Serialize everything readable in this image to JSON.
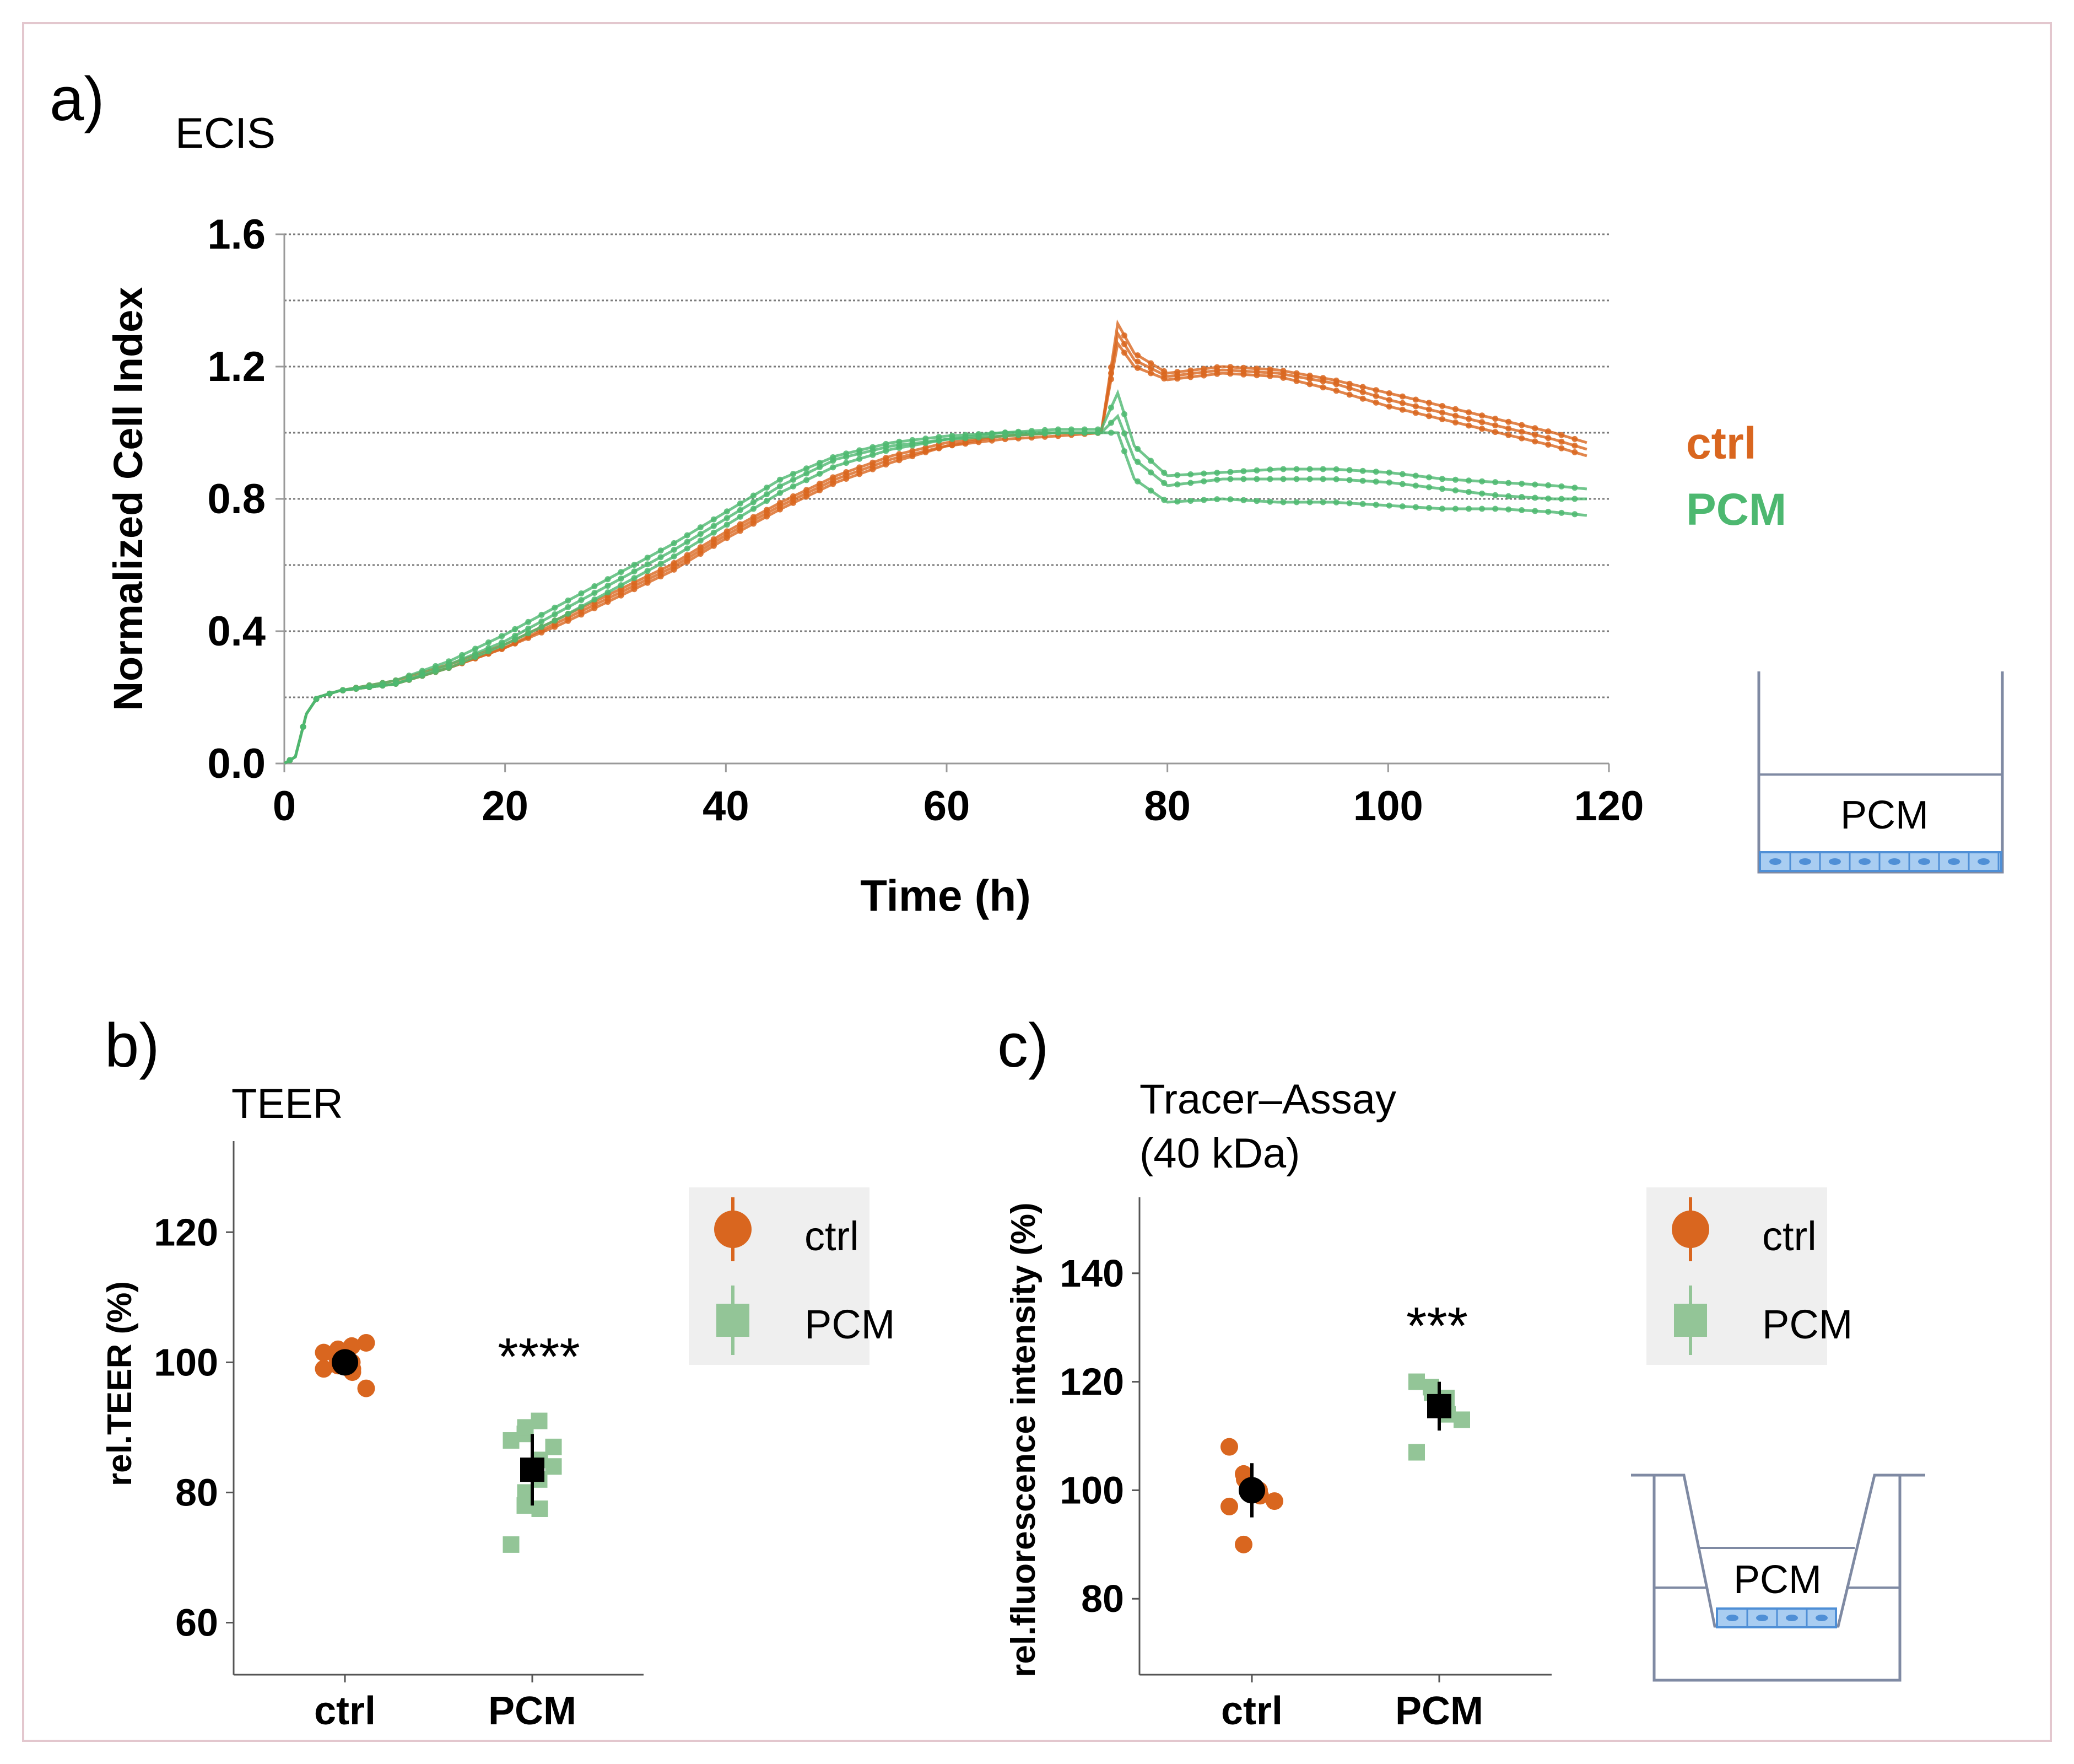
{
  "colors": {
    "ctrl": "#D9661F",
    "pcm": "#4DB870",
    "pcm_light": "#93C597",
    "frame": "#E3C7CE",
    "cell": "#4F8FD6",
    "cell_fill": "#A9CDF1"
  },
  "panels": {
    "a": {
      "letter": "a)",
      "title": "ECIS"
    },
    "b": {
      "letter": "b)",
      "title": "TEER"
    },
    "c": {
      "letter": "c)",
      "title_line1": "Tracer–Assay",
      "title_line2": "(40 kDa)"
    }
  },
  "schematics": {
    "well_label": "PCM",
    "transwell_label": "PCM"
  },
  "chart_data": [
    {
      "id": "ecis",
      "type": "line",
      "title": "ECIS",
      "xlabel": "Time (h)",
      "ylabel": "Normalized Cell Index",
      "xlim": [
        0,
        120
      ],
      "ylim": [
        0,
        1.6
      ],
      "xticks": [
        "0",
        "20",
        "40",
        "60",
        "80",
        "100",
        "120"
      ],
      "yticks": [
        "0.0",
        "0.4",
        "0.8",
        "1.2",
        "1.6"
      ],
      "grid": true,
      "legend": [
        "ctrl",
        "PCM"
      ],
      "series": [
        {
          "name": "ctrl",
          "group": "ctrl",
          "x": [
            0,
            1,
            2,
            3,
            5,
            10,
            15,
            20,
            25,
            30,
            35,
            40,
            45,
            50,
            55,
            60,
            65,
            70,
            74,
            75.5,
            77,
            80,
            85,
            90,
            95,
            100,
            105,
            110,
            115,
            118
          ],
          "y": [
            0,
            0.02,
            0.15,
            0.2,
            0.22,
            0.25,
            0.3,
            0.36,
            0.44,
            0.52,
            0.6,
            0.7,
            0.79,
            0.87,
            0.93,
            0.97,
            0.99,
            1.0,
            1.0,
            1.33,
            1.24,
            1.18,
            1.2,
            1.19,
            1.16,
            1.12,
            1.08,
            1.04,
            1.0,
            0.97
          ]
        },
        {
          "name": "ctrl",
          "group": "ctrl",
          "x": [
            0,
            1,
            2,
            3,
            5,
            10,
            15,
            20,
            25,
            30,
            35,
            40,
            45,
            50,
            55,
            60,
            65,
            70,
            74,
            75.5,
            77,
            80,
            85,
            90,
            95,
            100,
            105,
            110,
            115,
            118
          ],
          "y": [
            0,
            0.02,
            0.15,
            0.2,
            0.22,
            0.24,
            0.29,
            0.35,
            0.43,
            0.51,
            0.59,
            0.69,
            0.78,
            0.86,
            0.92,
            0.96,
            0.99,
            1.0,
            1.0,
            1.3,
            1.22,
            1.17,
            1.19,
            1.18,
            1.15,
            1.1,
            1.06,
            1.02,
            0.98,
            0.95
          ]
        },
        {
          "name": "ctrl",
          "group": "ctrl",
          "x": [
            0,
            1,
            2,
            3,
            5,
            10,
            15,
            20,
            25,
            30,
            35,
            40,
            45,
            50,
            55,
            60,
            65,
            70,
            74,
            75.5,
            77,
            80,
            85,
            90,
            95,
            100,
            105,
            110,
            115,
            118
          ],
          "y": [
            0,
            0.02,
            0.15,
            0.2,
            0.22,
            0.24,
            0.29,
            0.35,
            0.42,
            0.5,
            0.58,
            0.68,
            0.77,
            0.85,
            0.91,
            0.96,
            0.98,
            0.99,
            1.0,
            1.27,
            1.2,
            1.16,
            1.18,
            1.17,
            1.13,
            1.08,
            1.04,
            1.0,
            0.96,
            0.93
          ]
        },
        {
          "name": "PCM",
          "group": "pcm",
          "x": [
            0,
            1,
            2,
            3,
            5,
            10,
            15,
            20,
            25,
            30,
            35,
            40,
            45,
            50,
            55,
            60,
            65,
            70,
            74,
            75.5,
            77,
            80,
            85,
            90,
            95,
            100,
            105,
            110,
            115,
            118
          ],
          "y": [
            0,
            0.02,
            0.15,
            0.2,
            0.22,
            0.25,
            0.31,
            0.39,
            0.48,
            0.57,
            0.66,
            0.76,
            0.86,
            0.93,
            0.97,
            0.99,
            1.0,
            1.01,
            1.01,
            1.12,
            0.96,
            0.87,
            0.88,
            0.89,
            0.89,
            0.88,
            0.86,
            0.85,
            0.84,
            0.83
          ]
        },
        {
          "name": "PCM",
          "group": "pcm",
          "x": [
            0,
            1,
            2,
            3,
            5,
            10,
            15,
            20,
            25,
            30,
            35,
            40,
            45,
            50,
            55,
            60,
            65,
            70,
            74,
            75.5,
            77,
            80,
            85,
            90,
            95,
            100,
            105,
            110,
            115,
            118
          ],
          "y": [
            0,
            0.02,
            0.15,
            0.2,
            0.22,
            0.24,
            0.3,
            0.37,
            0.46,
            0.55,
            0.64,
            0.74,
            0.84,
            0.92,
            0.96,
            0.98,
            1.0,
            1.0,
            1.0,
            1.05,
            0.92,
            0.84,
            0.86,
            0.86,
            0.86,
            0.85,
            0.83,
            0.81,
            0.8,
            0.8
          ]
        },
        {
          "name": "PCM",
          "group": "pcm",
          "x": [
            0,
            1,
            2,
            3,
            5,
            10,
            15,
            20,
            25,
            30,
            35,
            40,
            45,
            50,
            55,
            60,
            65,
            70,
            74,
            75.5,
            77,
            80,
            85,
            90,
            95,
            100,
            105,
            110,
            115,
            118
          ],
          "y": [
            0,
            0.02,
            0.15,
            0.2,
            0.22,
            0.24,
            0.29,
            0.36,
            0.44,
            0.53,
            0.62,
            0.72,
            0.82,
            0.9,
            0.95,
            0.98,
            0.99,
            1.0,
            1.0,
            1.0,
            0.86,
            0.79,
            0.8,
            0.79,
            0.79,
            0.78,
            0.77,
            0.77,
            0.76,
            0.75
          ]
        }
      ]
    },
    {
      "id": "teer",
      "type": "scatter",
      "title": "TEER",
      "xlabel": "",
      "ylabel": "rel.TEER (%)",
      "categories": [
        "ctrl",
        "PCM"
      ],
      "ylim": [
        52,
        134
      ],
      "yticks": [
        "60",
        "80",
        "100",
        "120"
      ],
      "legend": [
        "ctrl",
        "PCM"
      ],
      "significance": "****",
      "points": [
        {
          "group": "ctrl",
          "values": [
            99,
            101,
            102,
            100,
            98.5,
            103,
            101.5,
            100.5,
            99.5,
            102.5,
            99,
            96
          ]
        },
        {
          "group": "PCM",
          "values": [
            72,
            78,
            80,
            82,
            85,
            87,
            88,
            89,
            90,
            91,
            77.5,
            84
          ]
        }
      ],
      "summary": [
        {
          "group": "ctrl",
          "mean": 100,
          "low": 99,
          "high": 101
        },
        {
          "group": "PCM",
          "mean": 83.5,
          "low": 78,
          "high": 89
        }
      ]
    },
    {
      "id": "tracer",
      "type": "scatter",
      "title": "Tracer–Assay (40 kDa)",
      "xlabel": "",
      "ylabel": "rel.fluorescence intensity (%)",
      "categories": [
        "ctrl",
        "PCM"
      ],
      "ylim": [
        66,
        154
      ],
      "yticks": [
        "80",
        "100",
        "120",
        "140"
      ],
      "legend": [
        "ctrl",
        "PCM"
      ],
      "significance": "***",
      "points": [
        {
          "group": "ctrl",
          "values": [
            108,
            103,
            102,
            100,
            99,
            98,
            97,
            90
          ]
        },
        {
          "group": "PCM",
          "values": [
            120,
            119,
            118,
            117,
            114,
            113,
            107
          ]
        }
      ],
      "summary": [
        {
          "group": "ctrl",
          "mean": 100,
          "low": 95,
          "high": 105
        },
        {
          "group": "PCM",
          "mean": 115.5,
          "low": 111,
          "high": 120
        }
      ]
    }
  ]
}
